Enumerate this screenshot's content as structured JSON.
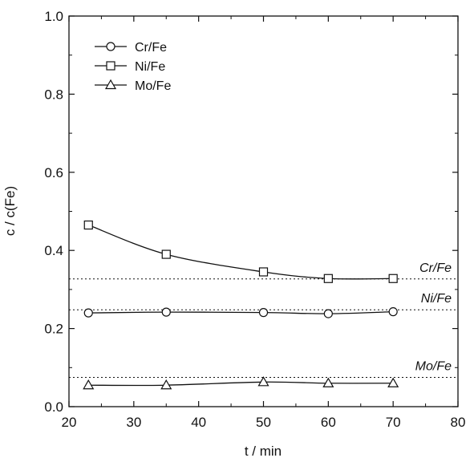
{
  "chart_data": {
    "type": "line",
    "title": "",
    "xlabel": "t / min",
    "ylabel": "c / c(Fe)",
    "xlim": [
      20,
      80
    ],
    "ylim": [
      0.0,
      1.0
    ],
    "xticks": [
      20,
      30,
      40,
      50,
      60,
      70,
      80
    ],
    "yticks": [
      0.0,
      0.2,
      0.4,
      0.6,
      0.8,
      1.0
    ],
    "xtick_labels": [
      "20",
      "30",
      "40",
      "50",
      "60",
      "70",
      "80"
    ],
    "ytick_labels": [
      "0.0",
      "0.2",
      "0.4",
      "0.6",
      "0.8",
      "1.0"
    ],
    "grid": false,
    "legend_position": "top-left",
    "series": [
      {
        "name": "Cr/Fe",
        "marker": "circle",
        "x": [
          23,
          35,
          50,
          60,
          70
        ],
        "y": [
          0.24,
          0.242,
          0.241,
          0.238,
          0.243
        ]
      },
      {
        "name": "Ni/Fe",
        "marker": "square",
        "x": [
          23,
          35,
          50,
          60,
          70
        ],
        "y": [
          0.465,
          0.39,
          0.345,
          0.328,
          0.328
        ]
      },
      {
        "name": "Mo/Fe",
        "marker": "triangle",
        "x": [
          23,
          35,
          50,
          60,
          70
        ],
        "y": [
          0.055,
          0.055,
          0.063,
          0.06,
          0.06
        ]
      }
    ],
    "reference_lines": [
      {
        "label": "Cr/Fe",
        "y": 0.327
      },
      {
        "label": "Ni/Fe",
        "y": 0.248
      },
      {
        "label": "Mo/Fe",
        "y": 0.075
      }
    ],
    "colors": {
      "line": "#111111",
      "background": "#ffffff"
    }
  }
}
